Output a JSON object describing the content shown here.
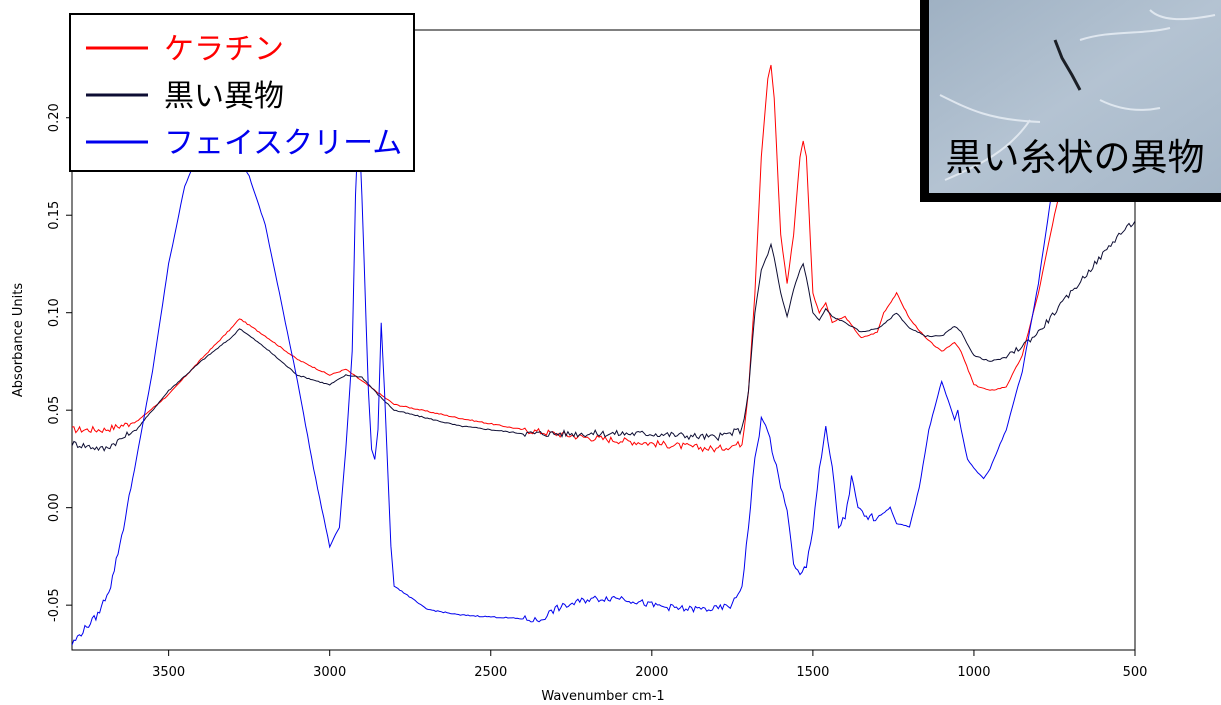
{
  "chart_data": {
    "type": "line",
    "xlabel": "Wavenumber cm-1",
    "ylabel": "Absorbance Units",
    "xlim": [
      3800,
      500
    ],
    "ylim": [
      -0.073,
      0.245
    ],
    "x_ticks": [
      "3500",
      "3000",
      "2500",
      "2000",
      "1500",
      "1000",
      "500"
    ],
    "y_ticks": [
      "-0.05",
      "0.00",
      "0.05",
      "0.10",
      "0.15",
      "0.20"
    ],
    "legend_position": "top-left",
    "series": [
      {
        "name": "ケラチン",
        "color": "#ff0000",
        "x": [
          3800,
          3700,
          3600,
          3500,
          3400,
          3300,
          3280,
          3200,
          3100,
          3000,
          2950,
          2900,
          2850,
          2800,
          2600,
          2400,
          2200,
          2000,
          1800,
          1720,
          1700,
          1680,
          1660,
          1640,
          1630,
          1620,
          1600,
          1580,
          1560,
          1540,
          1530,
          1520,
          1500,
          1480,
          1460,
          1440,
          1400,
          1350,
          1300,
          1280,
          1240,
          1200,
          1150,
          1100,
          1060,
          1040,
          1000,
          950,
          900,
          850,
          800,
          750,
          700,
          650,
          600,
          550,
          500
        ],
        "y": [
          0.04,
          0.04,
          0.044,
          0.058,
          0.076,
          0.093,
          0.097,
          0.088,
          0.076,
          0.068,
          0.071,
          0.065,
          0.059,
          0.053,
          0.046,
          0.04,
          0.036,
          0.033,
          0.03,
          0.033,
          0.06,
          0.11,
          0.18,
          0.22,
          0.227,
          0.21,
          0.14,
          0.115,
          0.14,
          0.18,
          0.188,
          0.18,
          0.11,
          0.1,
          0.105,
          0.095,
          0.098,
          0.087,
          0.09,
          0.1,
          0.11,
          0.097,
          0.087,
          0.08,
          0.085,
          0.08,
          0.063,
          0.06,
          0.062,
          0.078,
          0.11,
          0.15,
          0.185,
          0.21,
          0.225,
          0.235,
          0.24
        ]
      },
      {
        "name": "黒い異物",
        "color": "#0d0d33",
        "x": [
          3800,
          3700,
          3600,
          3500,
          3400,
          3300,
          3280,
          3200,
          3100,
          3000,
          2950,
          2900,
          2850,
          2800,
          2600,
          2400,
          2200,
          2000,
          1800,
          1720,
          1700,
          1680,
          1660,
          1640,
          1630,
          1620,
          1600,
          1580,
          1560,
          1540,
          1530,
          1520,
          1500,
          1480,
          1460,
          1440,
          1400,
          1350,
          1300,
          1280,
          1240,
          1200,
          1150,
          1100,
          1060,
          1040,
          1000,
          950,
          900,
          850,
          800,
          750,
          700,
          650,
          600,
          550,
          500
        ],
        "y": [
          0.033,
          0.03,
          0.04,
          0.06,
          0.075,
          0.088,
          0.092,
          0.082,
          0.068,
          0.063,
          0.068,
          0.067,
          0.058,
          0.05,
          0.042,
          0.038,
          0.038,
          0.038,
          0.036,
          0.04,
          0.06,
          0.1,
          0.122,
          0.13,
          0.135,
          0.128,
          0.11,
          0.098,
          0.112,
          0.122,
          0.125,
          0.118,
          0.1,
          0.096,
          0.102,
          0.098,
          0.095,
          0.09,
          0.092,
          0.094,
          0.1,
          0.092,
          0.088,
          0.088,
          0.093,
          0.09,
          0.078,
          0.075,
          0.077,
          0.083,
          0.09,
          0.1,
          0.11,
          0.12,
          0.13,
          0.14,
          0.147
        ]
      },
      {
        "name": "フェイスクリーム",
        "color": "#0000ee",
        "x": [
          3800,
          3760,
          3720,
          3680,
          3640,
          3600,
          3550,
          3500,
          3450,
          3400,
          3350,
          3300,
          3250,
          3200,
          3150,
          3100,
          3050,
          3000,
          2970,
          2950,
          2930,
          2920,
          2910,
          2900,
          2880,
          2870,
          2860,
          2850,
          2840,
          2830,
          2810,
          2800,
          2700,
          2600,
          2500,
          2400,
          2350,
          2300,
          2200,
          2100,
          2000,
          1900,
          1800,
          1750,
          1720,
          1700,
          1680,
          1660,
          1640,
          1620,
          1600,
          1580,
          1560,
          1540,
          1520,
          1500,
          1480,
          1460,
          1440,
          1420,
          1400,
          1380,
          1360,
          1340,
          1300,
          1260,
          1240,
          1200,
          1170,
          1140,
          1100,
          1080,
          1060,
          1050,
          1040,
          1020,
          1000,
          970,
          950,
          900,
          850,
          800,
          760,
          720,
          700,
          650,
          600
        ],
        "y": [
          -0.07,
          -0.062,
          -0.055,
          -0.04,
          -0.01,
          0.025,
          0.07,
          0.125,
          0.165,
          0.185,
          0.19,
          0.185,
          0.17,
          0.145,
          0.105,
          0.065,
          0.02,
          -0.02,
          -0.01,
          0.03,
          0.08,
          0.16,
          0.2,
          0.16,
          0.06,
          0.03,
          0.025,
          0.04,
          0.095,
          0.06,
          -0.02,
          -0.04,
          -0.052,
          -0.055,
          -0.056,
          -0.057,
          -0.058,
          -0.052,
          -0.047,
          -0.046,
          -0.05,
          -0.052,
          -0.052,
          -0.05,
          -0.04,
          -0.01,
          0.025,
          0.045,
          0.04,
          0.025,
          0.01,
          0.0,
          -0.03,
          -0.035,
          -0.03,
          -0.01,
          0.02,
          0.04,
          0.02,
          -0.01,
          -0.005,
          0.015,
          0.0,
          -0.005,
          -0.005,
          0.0,
          -0.008,
          -0.01,
          0.01,
          0.04,
          0.065,
          0.055,
          0.045,
          0.05,
          0.04,
          0.025,
          0.02,
          0.015,
          0.02,
          0.04,
          0.07,
          0.115,
          0.16,
          0.19,
          0.2,
          0.22,
          0.235
        ]
      }
    ],
    "inset": {
      "caption": "黒い糸状の異物"
    }
  }
}
